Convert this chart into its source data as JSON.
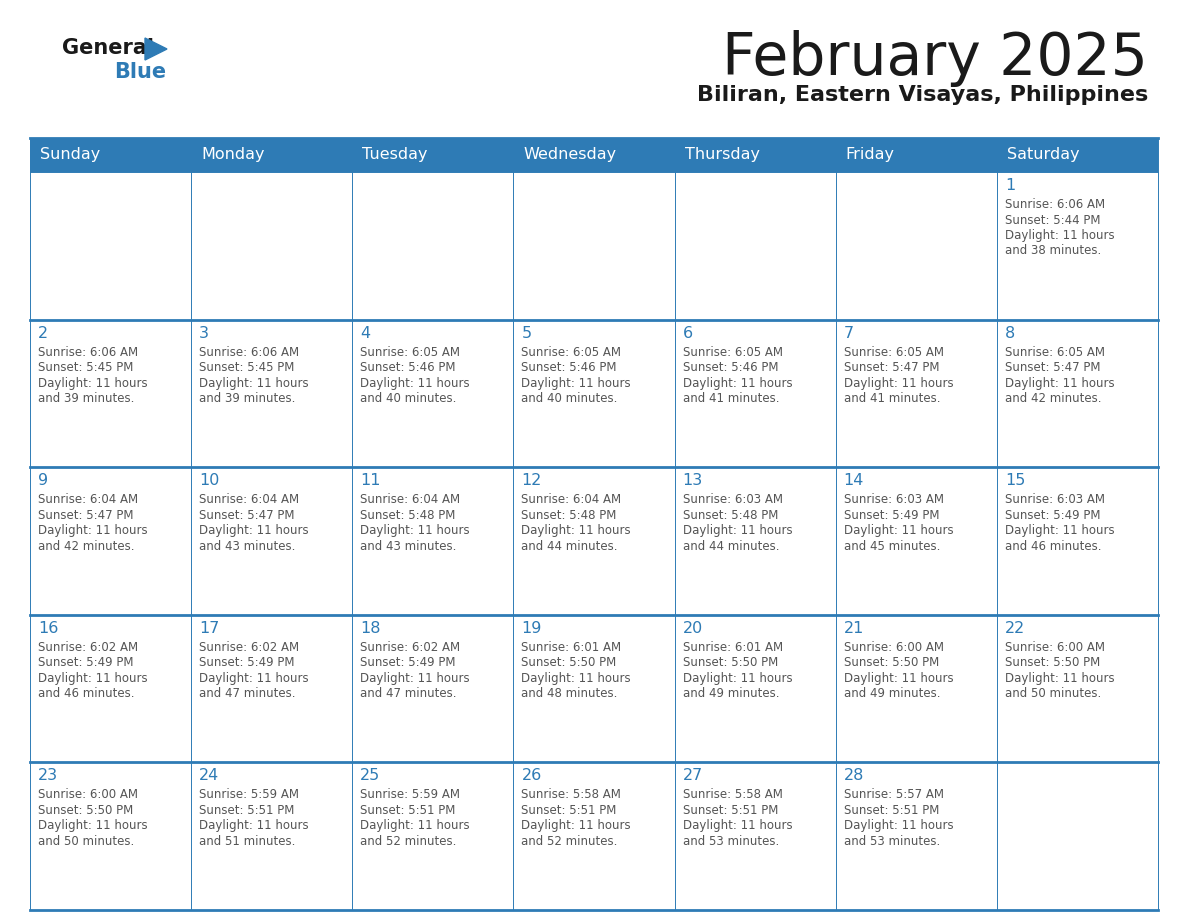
{
  "title": "February 2025",
  "subtitle": "Biliran, Eastern Visayas, Philippines",
  "days_of_week": [
    "Sunday",
    "Monday",
    "Tuesday",
    "Wednesday",
    "Thursday",
    "Friday",
    "Saturday"
  ],
  "header_bg": "#2E7BB5",
  "header_text": "#FFFFFF",
  "cell_bg": "#FFFFFF",
  "day_number_color": "#2E7BB5",
  "info_text_color": "#555555",
  "border_color": "#2E7BB5",
  "title_color": "#1a1a1a",
  "subtitle_color": "#1a1a1a",
  "logo_general_color": "#1a1a1a",
  "logo_blue_color": "#2E7BB5",
  "calendar_data": [
    [
      null,
      null,
      null,
      null,
      null,
      null,
      {
        "day": 1,
        "sunrise": "6:06 AM",
        "sunset": "5:44 PM",
        "daylight": "11 hours",
        "daylight2": "and 38 minutes."
      }
    ],
    [
      {
        "day": 2,
        "sunrise": "6:06 AM",
        "sunset": "5:45 PM",
        "daylight": "11 hours",
        "daylight2": "and 39 minutes."
      },
      {
        "day": 3,
        "sunrise": "6:06 AM",
        "sunset": "5:45 PM",
        "daylight": "11 hours",
        "daylight2": "and 39 minutes."
      },
      {
        "day": 4,
        "sunrise": "6:05 AM",
        "sunset": "5:46 PM",
        "daylight": "11 hours",
        "daylight2": "and 40 minutes."
      },
      {
        "day": 5,
        "sunrise": "6:05 AM",
        "sunset": "5:46 PM",
        "daylight": "11 hours",
        "daylight2": "and 40 minutes."
      },
      {
        "day": 6,
        "sunrise": "6:05 AM",
        "sunset": "5:46 PM",
        "daylight": "11 hours",
        "daylight2": "and 41 minutes."
      },
      {
        "day": 7,
        "sunrise": "6:05 AM",
        "sunset": "5:47 PM",
        "daylight": "11 hours",
        "daylight2": "and 41 minutes."
      },
      {
        "day": 8,
        "sunrise": "6:05 AM",
        "sunset": "5:47 PM",
        "daylight": "11 hours",
        "daylight2": "and 42 minutes."
      }
    ],
    [
      {
        "day": 9,
        "sunrise": "6:04 AM",
        "sunset": "5:47 PM",
        "daylight": "11 hours",
        "daylight2": "and 42 minutes."
      },
      {
        "day": 10,
        "sunrise": "6:04 AM",
        "sunset": "5:47 PM",
        "daylight": "11 hours",
        "daylight2": "and 43 minutes."
      },
      {
        "day": 11,
        "sunrise": "6:04 AM",
        "sunset": "5:48 PM",
        "daylight": "11 hours",
        "daylight2": "and 43 minutes."
      },
      {
        "day": 12,
        "sunrise": "6:04 AM",
        "sunset": "5:48 PM",
        "daylight": "11 hours",
        "daylight2": "and 44 minutes."
      },
      {
        "day": 13,
        "sunrise": "6:03 AM",
        "sunset": "5:48 PM",
        "daylight": "11 hours",
        "daylight2": "and 44 minutes."
      },
      {
        "day": 14,
        "sunrise": "6:03 AM",
        "sunset": "5:49 PM",
        "daylight": "11 hours",
        "daylight2": "and 45 minutes."
      },
      {
        "day": 15,
        "sunrise": "6:03 AM",
        "sunset": "5:49 PM",
        "daylight": "11 hours",
        "daylight2": "and 46 minutes."
      }
    ],
    [
      {
        "day": 16,
        "sunrise": "6:02 AM",
        "sunset": "5:49 PM",
        "daylight": "11 hours",
        "daylight2": "and 46 minutes."
      },
      {
        "day": 17,
        "sunrise": "6:02 AM",
        "sunset": "5:49 PM",
        "daylight": "11 hours",
        "daylight2": "and 47 minutes."
      },
      {
        "day": 18,
        "sunrise": "6:02 AM",
        "sunset": "5:49 PM",
        "daylight": "11 hours",
        "daylight2": "and 47 minutes."
      },
      {
        "day": 19,
        "sunrise": "6:01 AM",
        "sunset": "5:50 PM",
        "daylight": "11 hours",
        "daylight2": "and 48 minutes."
      },
      {
        "day": 20,
        "sunrise": "6:01 AM",
        "sunset": "5:50 PM",
        "daylight": "11 hours",
        "daylight2": "and 49 minutes."
      },
      {
        "day": 21,
        "sunrise": "6:00 AM",
        "sunset": "5:50 PM",
        "daylight": "11 hours",
        "daylight2": "and 49 minutes."
      },
      {
        "day": 22,
        "sunrise": "6:00 AM",
        "sunset": "5:50 PM",
        "daylight": "11 hours",
        "daylight2": "and 50 minutes."
      }
    ],
    [
      {
        "day": 23,
        "sunrise": "6:00 AM",
        "sunset": "5:50 PM",
        "daylight": "11 hours",
        "daylight2": "and 50 minutes."
      },
      {
        "day": 24,
        "sunrise": "5:59 AM",
        "sunset": "5:51 PM",
        "daylight": "11 hours",
        "daylight2": "and 51 minutes."
      },
      {
        "day": 25,
        "sunrise": "5:59 AM",
        "sunset": "5:51 PM",
        "daylight": "11 hours",
        "daylight2": "and 52 minutes."
      },
      {
        "day": 26,
        "sunrise": "5:58 AM",
        "sunset": "5:51 PM",
        "daylight": "11 hours",
        "daylight2": "and 52 minutes."
      },
      {
        "day": 27,
        "sunrise": "5:58 AM",
        "sunset": "5:51 PM",
        "daylight": "11 hours",
        "daylight2": "and 53 minutes."
      },
      {
        "day": 28,
        "sunrise": "5:57 AM",
        "sunset": "5:51 PM",
        "daylight": "11 hours",
        "daylight2": "and 53 minutes."
      },
      null
    ]
  ]
}
